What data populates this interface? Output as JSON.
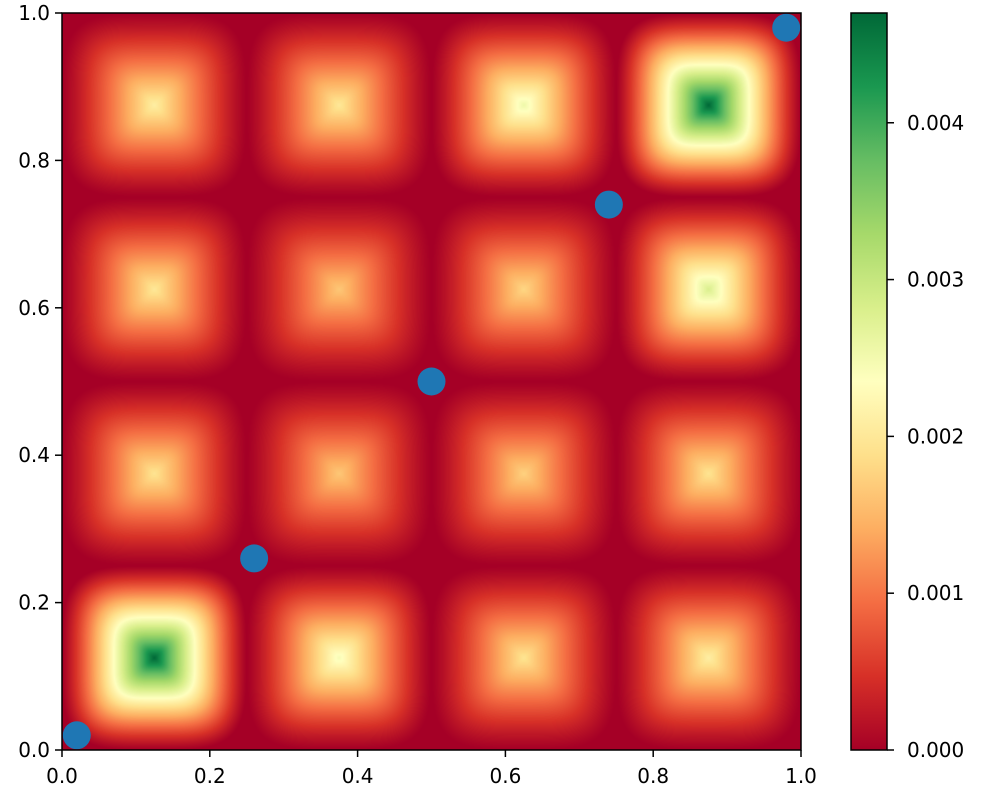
{
  "chart_data": {
    "type": "heatmap",
    "title": "",
    "xlabel": "",
    "ylabel": "",
    "xlim": [
      0.0,
      1.0
    ],
    "ylim": [
      0.0,
      1.0
    ],
    "x_ticks": [
      "0.0",
      "0.2",
      "0.4",
      "0.6",
      "0.8",
      "1.0"
    ],
    "y_ticks": [
      "0.0",
      "0.2",
      "0.4",
      "0.6",
      "0.8",
      "1.0"
    ],
    "grid": false,
    "colormap": "RdYlGn",
    "colormap_stops": [
      "#a50026",
      "#d73027",
      "#f46d43",
      "#fdae61",
      "#fee08b",
      "#ffffbf",
      "#d9ef8b",
      "#a6d96a",
      "#66bd63",
      "#1a9850",
      "#006837"
    ],
    "colorbar": {
      "range": [
        0.0,
        0.0047
      ],
      "ticks": [
        "0.000",
        "0.001",
        "0.002",
        "0.003",
        "0.004"
      ],
      "placement": "right"
    },
    "cell_centers": [
      0.125,
      0.375,
      0.625,
      0.875
    ],
    "cell_peaks": [
      [
        0.0047,
        0.00245,
        0.00195,
        0.0021
      ],
      [
        0.00195,
        0.00165,
        0.00175,
        0.00195
      ],
      [
        0.002,
        0.00165,
        0.0018,
        0.0028
      ],
      [
        0.0021,
        0.002,
        0.00255,
        0.0047
      ]
    ],
    "points": {
      "color": "#1f77b4",
      "x": [
        0.02,
        0.26,
        0.5,
        0.74,
        0.98
      ],
      "y": [
        0.02,
        0.26,
        0.5,
        0.74,
        0.98
      ]
    }
  }
}
